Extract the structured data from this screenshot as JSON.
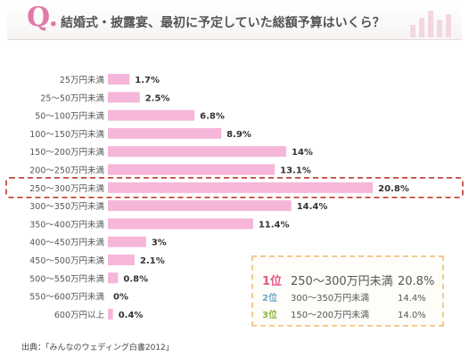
{
  "header": {
    "q_letter": "Q.",
    "question": "結婚式・披露宴、最初に予定していた総額予算はいくら？"
  },
  "chart_data": {
    "type": "bar",
    "orientation": "horizontal",
    "categories": [
      "25万円未満",
      "25～50万円未満",
      "50～100万円未満",
      "100～150万円未満",
      "150～200万円未満",
      "200～250万円未満",
      "250～300万円未満",
      "300～350万円未満",
      "350～400万円未満",
      "400～450万円未満",
      "450～500万円未満",
      "500～550万円未満",
      "550～600万円未満",
      "600万円以上"
    ],
    "values": [
      1.7,
      2.5,
      6.8,
      8.9,
      14,
      13.1,
      20.8,
      14.4,
      11.4,
      3,
      2.1,
      0.8,
      0,
      0.4
    ],
    "value_labels": [
      "1.7%",
      "2.5%",
      "6.8%",
      "8.9%",
      "14%",
      "13.1%",
      "20.8%",
      "14.4%",
      "11.4%",
      "3%",
      "2.1%",
      "0.8%",
      "0%",
      "0.4%"
    ],
    "highlight_index": 6,
    "xlim": [
      0,
      21
    ],
    "grid": false,
    "bar_color": "#f6b6da",
    "highlight_border_color": "#c0392b"
  },
  "ranking": [
    {
      "position": "1位",
      "label": "250～300万円未満",
      "value": "20.8%"
    },
    {
      "position": "2位",
      "label": "300～350万円未満",
      "value": "14.4%"
    },
    {
      "position": "3位",
      "label": "150～200万円未満",
      "value": "14.0%"
    }
  ],
  "source": "出典：「みんなのウェディング白書2012」"
}
